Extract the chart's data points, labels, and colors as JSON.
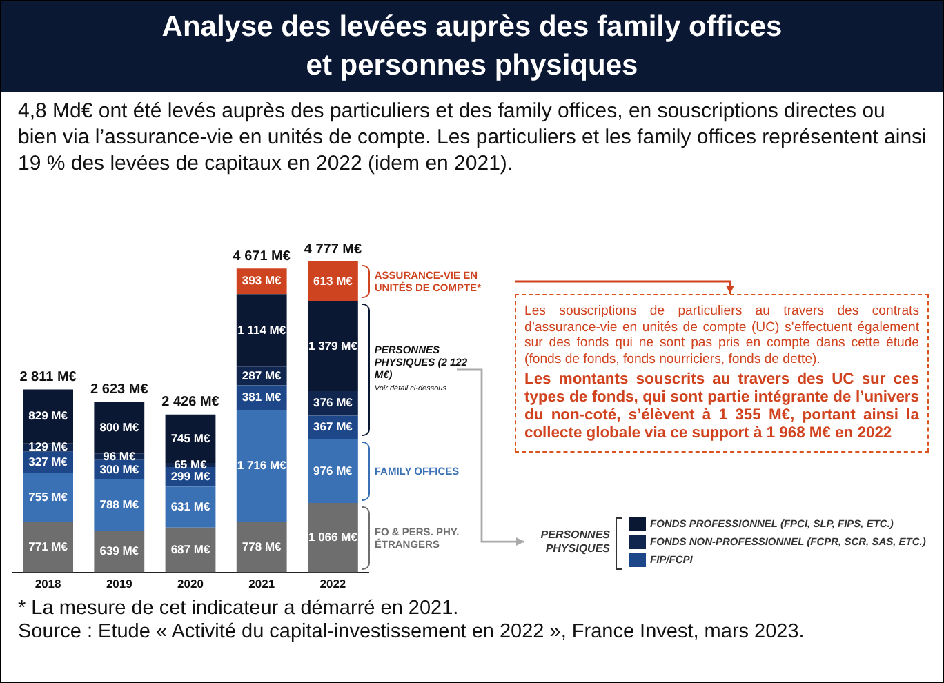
{
  "chart_data": {
    "type": "bar",
    "stacked": true,
    "title": "Analyse des levées auprès des family offices et personnes physiques",
    "subtitle": "4,8 Md€ ont été levés auprès des particuliers et des family offices, en souscriptions directes ou bien via l’assurance-vie en unités de compte. Les particuliers et les family offices représentent ainsi 19 % des levées de capitaux en 2022 (idem en 2021).",
    "categories": [
      "2018",
      "2019",
      "2020",
      "2021",
      "2022"
    ],
    "series": [
      {
        "name": "FO & PERS. PHY. ÉTRANGERS",
        "color": "#6e6e6e",
        "values": [
          771,
          639,
          687,
          778,
          1066
        ],
        "value_labels": [
          "771 M€",
          "639 M€",
          "687 M€",
          "778 M€",
          "1 066 M€"
        ]
      },
      {
        "name": "FAMILY OFFICES",
        "color": "#3a70b4",
        "values": [
          755,
          788,
          631,
          1716,
          976
        ],
        "value_labels": [
          "755 M€",
          "788 M€",
          "631 M€",
          "1 716 M€",
          "976 M€"
        ]
      },
      {
        "name": "FIP/FCPI",
        "color": "#1e478a",
        "values": [
          327,
          300,
          299,
          381,
          367
        ],
        "value_labels": [
          "327 M€",
          "300 M€",
          "299 M€",
          "381 M€",
          "367 M€"
        ]
      },
      {
        "name": "FONDS NON-PROFESSIONNEL (FCPR, SCR, SAS, ETC.)",
        "color": "#11264f",
        "values": [
          129,
          96,
          65,
          287,
          376
        ],
        "value_labels": [
          "129 M€",
          "96 M€",
          "65 M€",
          "287 M€",
          "376 M€"
        ]
      },
      {
        "name": "FONDS PROFESSIONNEL (FPCI, SLP, FIPS, ETC.)",
        "color": "#0b1834",
        "values": [
          829,
          800,
          745,
          1114,
          1379
        ],
        "value_labels": [
          "829 M€",
          "800 M€",
          "745 M€",
          "1 114 M€",
          "1 379 M€"
        ]
      },
      {
        "name": "ASSURANCE-VIE EN UNITÉS DE COMPTE*",
        "color": "#cf4420",
        "values": [
          null,
          null,
          null,
          393,
          613
        ],
        "value_labels": [
          null,
          null,
          null,
          "393 M€",
          "613 M€"
        ]
      }
    ],
    "totals": [
      "2 811 M€",
      "2 623 M€",
      "2 426 M€",
      "4 671 M€",
      "4 777 M€"
    ],
    "legend": "bottom right",
    "legend_title": "PERSONNES PHYSIQUES",
    "tick_labels": "x",
    "annotations": [
      "PERSONNES PHYSIQUES (2 122 M€)",
      "Voir détail ci-dessous",
      "Les souscriptions de particuliers au travers des contrats d’assurance-vie en unités de compte (UC) s’effectuent également sur des fonds qui ne sont pas pris en compte dans cette étude (fonds de fonds, fonds nourriciers, fonds de dette).",
      "Les montants souscrits au travers des UC sur ces types de fonds, qui sont partie intégrante de l’univers du non-coté, s’élèvent à 1 355 M€, portant ainsi la collecte globale via ce support à 1 968 M€ en 2022",
      "* La mesure de cet indicateur a démarré en 2021.",
      "Source : Etude « Activité du capital-investissement en 2022 », France Invest, mars 2023."
    ]
  }
}
